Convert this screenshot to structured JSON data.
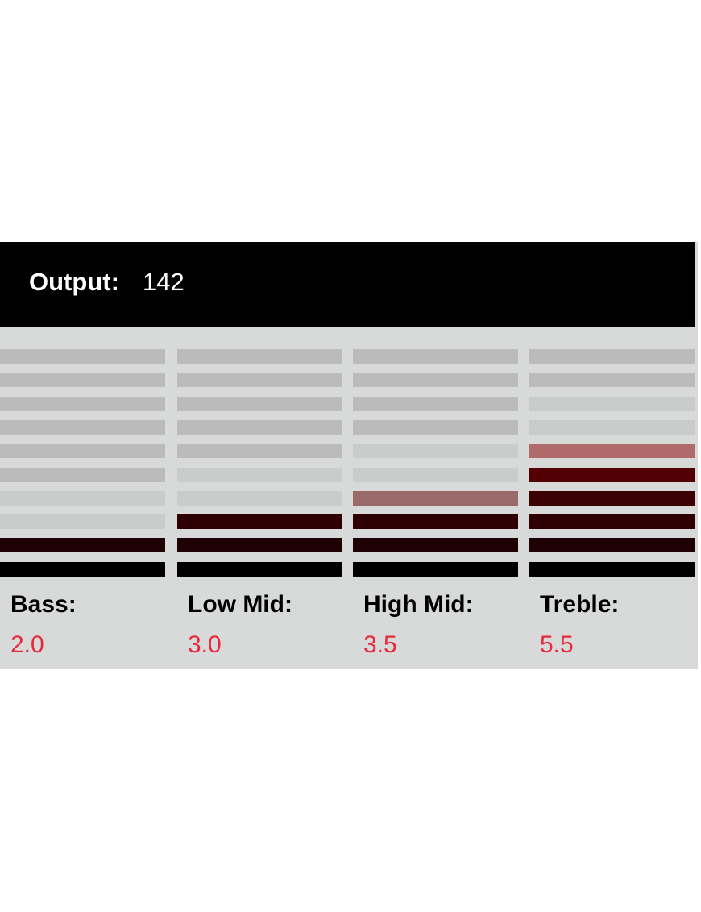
{
  "header": {
    "label": "Output:",
    "value": "142"
  },
  "bands": [
    {
      "label": "Bass:",
      "value": "2.0"
    },
    {
      "label": "Low Mid:",
      "value": "3.0"
    },
    {
      "label": "High Mid:",
      "value": "3.5"
    },
    {
      "label": "Treble:",
      "value": "5.5"
    }
  ]
}
